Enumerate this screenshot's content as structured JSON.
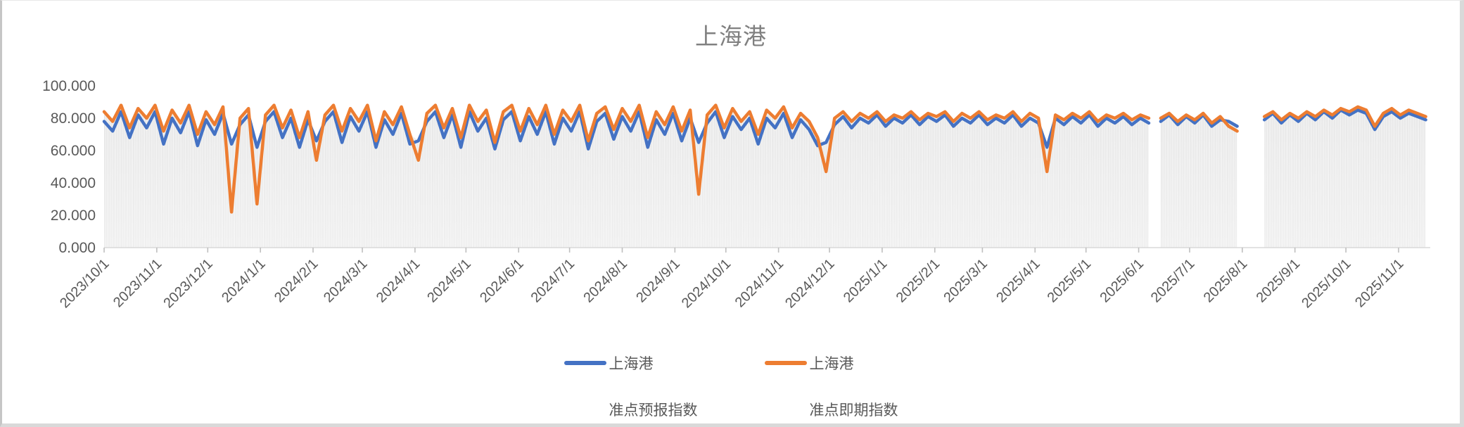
{
  "chart_data": {
    "type": "line",
    "title": "上海港",
    "xlabel": "",
    "ylabel": "",
    "ylim": [
      0,
      100
    ],
    "grid": "dense-vertical-gray-stripes-under-curve",
    "legend_position": "bottom-center",
    "y_ticks": [
      {
        "label": "0.000",
        "value": 0
      },
      {
        "label": "20.000",
        "value": 20
      },
      {
        "label": "40.000",
        "value": 40
      },
      {
        "label": "60.000",
        "value": 60
      },
      {
        "label": "80.000",
        "value": 80
      },
      {
        "label": "100.000",
        "value": 100
      }
    ],
    "x_ticks": [
      {
        "label": "2023/10/1",
        "day": 0
      },
      {
        "label": "2023/11/1",
        "day": 31
      },
      {
        "label": "2023/12/1",
        "day": 61
      },
      {
        "label": "2024/1/1",
        "day": 92
      },
      {
        "label": "2024/2/1",
        "day": 123
      },
      {
        "label": "2024/3/1",
        "day": 152
      },
      {
        "label": "2024/4/1",
        "day": 183
      },
      {
        "label": "2024/5/1",
        "day": 213
      },
      {
        "label": "2024/6/1",
        "day": 244
      },
      {
        "label": "2024/7/1",
        "day": 274
      },
      {
        "label": "2024/8/1",
        "day": 305
      },
      {
        "label": "2024/9/1",
        "day": 336
      },
      {
        "label": "2024/10/1",
        "day": 366
      },
      {
        "label": "2024/11/1",
        "day": 397
      },
      {
        "label": "2024/12/1",
        "day": 427
      },
      {
        "label": "2025/1/1",
        "day": 458
      },
      {
        "label": "2025/2/1",
        "day": 489
      },
      {
        "label": "2025/3/1",
        "day": 517
      },
      {
        "label": "2025/4/1",
        "day": 548
      },
      {
        "label": "2025/5/1",
        "day": 578
      },
      {
        "label": "2025/6/1",
        "day": 609
      },
      {
        "label": "2025/7/1",
        "day": 639
      },
      {
        "label": "2025/8/1",
        "day": 670
      },
      {
        "label": "2025/9/1",
        "day": 701
      },
      {
        "label": "2025/10/1",
        "day": 731
      },
      {
        "label": "2025/11/1",
        "day": 762
      }
    ],
    "x_domain_days": [
      0,
      778
    ],
    "data_gaps_days": [
      [
        616,
        621
      ],
      [
        668,
        682
      ]
    ],
    "series": [
      {
        "name_line1": "上海港",
        "name_line2": "准点预报指数",
        "color": "#4472C4",
        "segments": [
          {
            "start_day": 0,
            "step_days": 5,
            "values": [
              78,
              72,
              84,
              68,
              82,
              74,
              84,
              64,
              80,
              71,
              84,
              63,
              79,
              70,
              83,
              64,
              76,
              82,
              62,
              78,
              84,
              68,
              80,
              62,
              79,
              66,
              78,
              84,
              65,
              81,
              72,
              84,
              62,
              79,
              70,
              83,
              64,
              66,
              78,
              84,
              68,
              82,
              62,
              84,
              72,
              80,
              61,
              79,
              84,
              66,
              81,
              70,
              84,
              64,
              80,
              72,
              84,
              61,
              78,
              83,
              67,
              81,
              72,
              84,
              62,
              79,
              70,
              83,
              66,
              80,
              65,
              77,
              84,
              68,
              81,
              73,
              80,
              64,
              80,
              74,
              83,
              68,
              79,
              73,
              63,
              65,
              76,
              81,
              74,
              80,
              77,
              82,
              75,
              80,
              77,
              82,
              76,
              81,
              78,
              82,
              75,
              80,
              77,
              82,
              76,
              80,
              77,
              82,
              75,
              80,
              77,
              62,
              80,
              76,
              81,
              77,
              82,
              75,
              80,
              77,
              81,
              76,
              80,
              77
            ]
          },
          {
            "start_day": 622,
            "step_days": 5,
            "values": [
              78,
              82,
              76,
              81,
              77,
              82,
              75,
              79,
              78,
              75
            ]
          },
          {
            "start_day": 683,
            "step_days": 5,
            "values": [
              79,
              83,
              77,
              82,
              78,
              83,
              79,
              84,
              80,
              85,
              82,
              85,
              83,
              73,
              81,
              84,
              80,
              83,
              81,
              79
            ]
          }
        ]
      },
      {
        "name_line1": "上海港",
        "name_line2": "准点即期指数",
        "color": "#ED7D31",
        "segments": [
          {
            "start_day": 0,
            "step_days": 5,
            "values": [
              84,
              78,
              88,
              74,
              86,
              80,
              88,
              72,
              85,
              77,
              88,
              70,
              84,
              76,
              87,
              22,
              80,
              86,
              27,
              82,
              88,
              74,
              85,
              68,
              84,
              54,
              82,
              88,
              72,
              86,
              78,
              88,
              66,
              84,
              76,
              87,
              70,
              54,
              83,
              88,
              74,
              86,
              68,
              88,
              78,
              85,
              65,
              84,
              88,
              72,
              86,
              76,
              88,
              70,
              85,
              78,
              88,
              66,
              83,
              87,
              73,
              86,
              78,
              88,
              68,
              84,
              76,
              87,
              72,
              85,
              33,
              82,
              88,
              74,
              86,
              78,
              84,
              70,
              85,
              80,
              87,
              74,
              83,
              78,
              68,
              47,
              80,
              84,
              78,
              83,
              80,
              84,
              78,
              82,
              80,
              84,
              79,
              83,
              81,
              84,
              78,
              83,
              80,
              84,
              79,
              82,
              80,
              84,
              78,
              83,
              80,
              47,
              82,
              79,
              83,
              80,
              84,
              78,
              82,
              80,
              83,
              79,
              82,
              80
            ]
          },
          {
            "start_day": 622,
            "step_days": 5,
            "values": [
              80,
              83,
              78,
              82,
              79,
              83,
              77,
              81,
              75,
              72
            ]
          },
          {
            "start_day": 683,
            "step_days": 5,
            "values": [
              81,
              84,
              79,
              83,
              80,
              84,
              81,
              85,
              82,
              86,
              84,
              87,
              85,
              75,
              83,
              86,
              82,
              85,
              83,
              81
            ]
          }
        ]
      }
    ],
    "style_colors": {
      "title_text": "#808080",
      "axis_label_text": "#595959",
      "axis_line": "#d9d9d9",
      "tick_mark": "#bfbfbf",
      "stripe_fill": "#e2e2e2",
      "series_blue": "#4472C4",
      "series_orange": "#ED7D31"
    }
  },
  "legend": {
    "items": [
      {
        "line1": "上海港",
        "line2": "准点预报指数",
        "color": "#4472C4"
      },
      {
        "line1": "上海港",
        "line2": "准点即期指数",
        "color": "#ED7D31"
      }
    ]
  }
}
